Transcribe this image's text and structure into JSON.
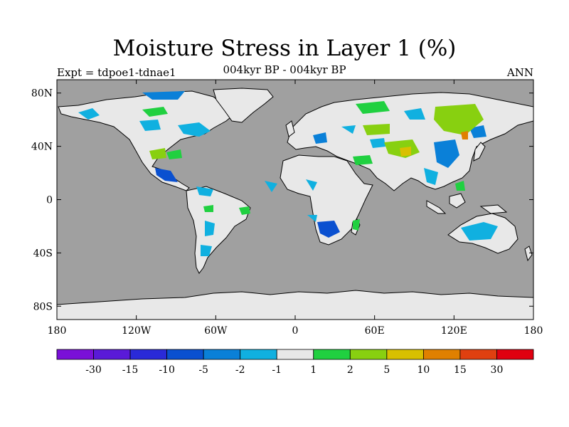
{
  "title": "Moisture Stress in Layer 1 (%)",
  "subtitle": "004kyr BP - 004kyr BP",
  "left_label": "Expt = tdpoe1-tdnae1",
  "right_label": "ANN",
  "lat_ticks": [
    {
      "value": 80,
      "label": "80N"
    },
    {
      "value": 40,
      "label": "40N"
    },
    {
      "value": 0,
      "label": "0"
    },
    {
      "value": -40,
      "label": "40S"
    },
    {
      "value": -80,
      "label": "80S"
    }
  ],
  "lon_ticks": [
    {
      "value": -180,
      "label": "180"
    },
    {
      "value": -120,
      "label": "120W"
    },
    {
      "value": -60,
      "label": "60W"
    },
    {
      "value": 0,
      "label": "0"
    },
    {
      "value": 60,
      "label": "60E"
    },
    {
      "value": 120,
      "label": "120E"
    },
    {
      "value": 180,
      "label": "180"
    }
  ],
  "colorbar": {
    "colors": [
      "#7a10d8",
      "#5a1ad8",
      "#2a2ad8",
      "#0a50d0",
      "#0a80d8",
      "#10b0e0",
      "#e8e8e8",
      "#20d040",
      "#88d010",
      "#d8c000",
      "#e08000",
      "#e04010",
      "#e00010"
    ],
    "labels": [
      "-30",
      "-15",
      "-10",
      "-5",
      "-2",
      "-1",
      "1",
      "2",
      "5",
      "10",
      "15",
      "30"
    ]
  },
  "colors": {
    "ocean": "#a0a0a0",
    "land": "#e8e8e8",
    "coast": "#000000"
  }
}
